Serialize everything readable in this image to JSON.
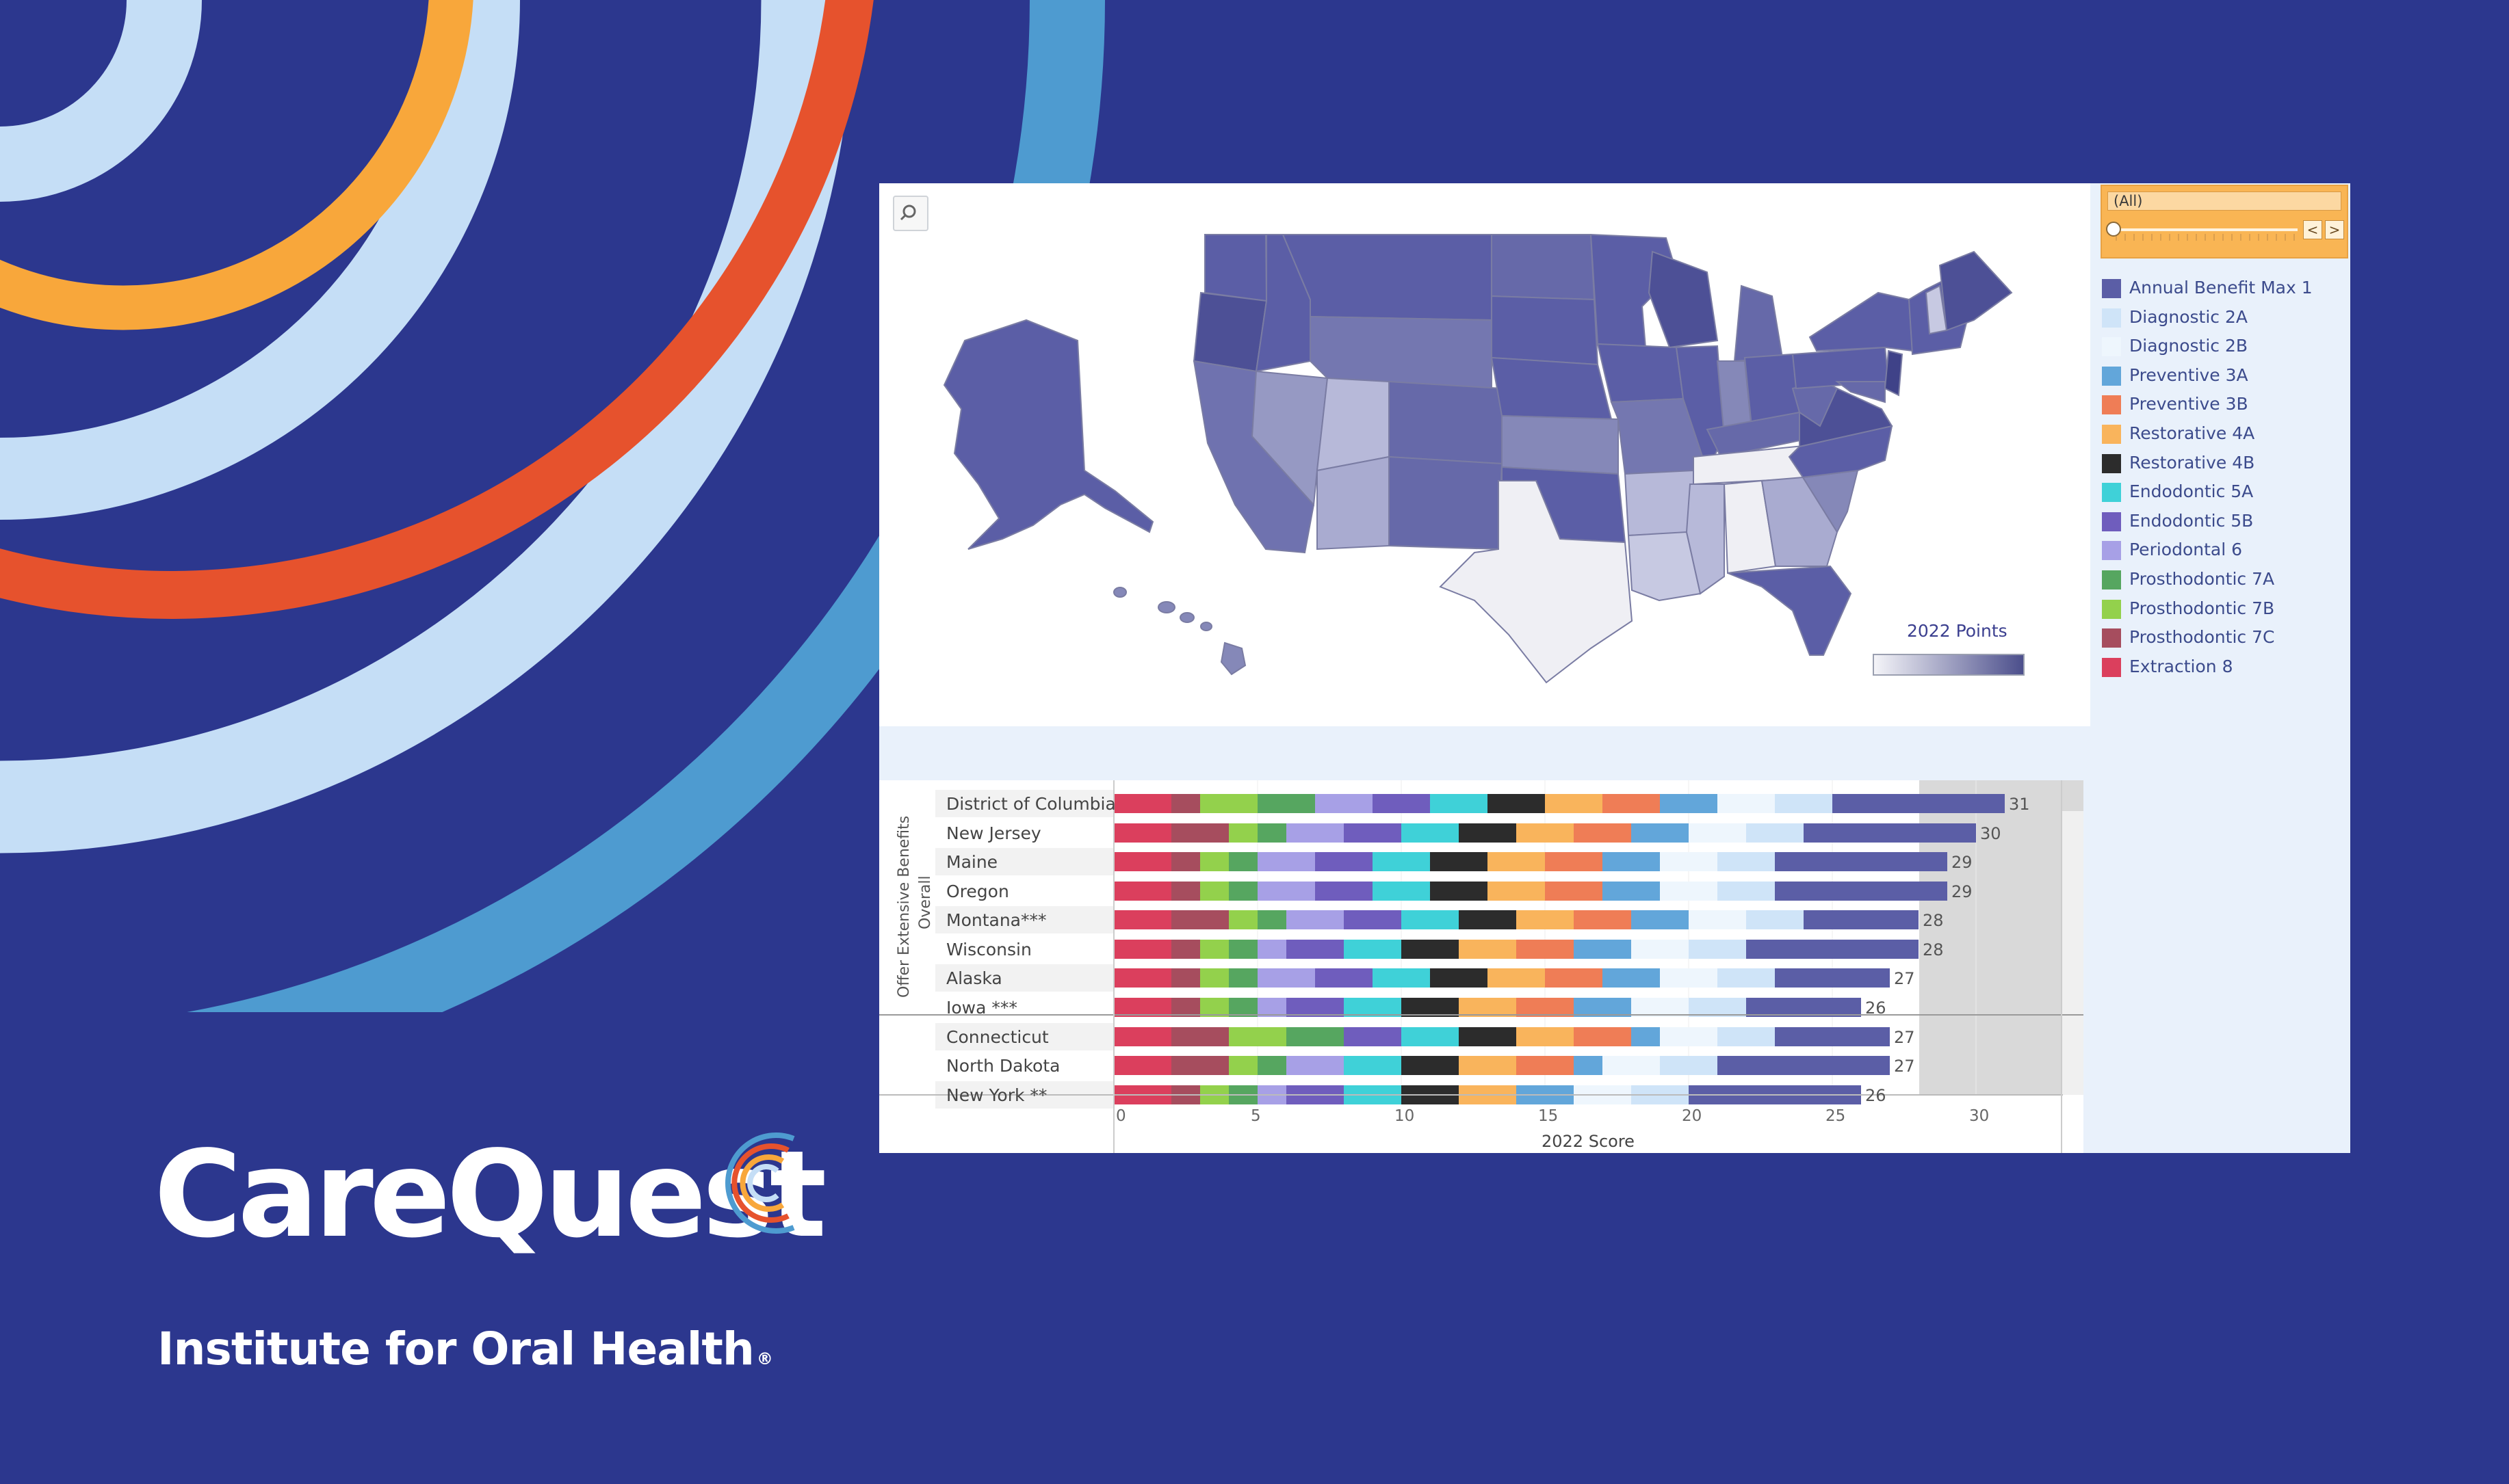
{
  "brand": {
    "name": "CareQuest",
    "subtitle": "Institute for Oral Health",
    "registered": "®"
  },
  "dashboard": {
    "map": {
      "legend_title": "2022 Points",
      "gradient_low": "#f4f4f8",
      "gradient_high": "#4c4f8c"
    },
    "filter": {
      "value": "(All)",
      "prev": "<",
      "next": ">"
    },
    "legend": [
      {
        "label": "Annual Benefit Max 1",
        "color": "#5b5ea6"
      },
      {
        "label": "Diagnostic 2A",
        "color": "#cfe4f8"
      },
      {
        "label": "Diagnostic 2B",
        "color": "#eef6fd"
      },
      {
        "label": "Preventive 3A",
        "color": "#62a6da"
      },
      {
        "label": "Preventive 3B",
        "color": "#ef7d56"
      },
      {
        "label": "Restorative 4A",
        "color": "#f9b45c"
      },
      {
        "label": "Restorative 4B",
        "color": "#2c2c2c"
      },
      {
        "label": "Endodontic 5A",
        "color": "#3fd1d8"
      },
      {
        "label": "Endodontic 5B",
        "color": "#6f5dbd"
      },
      {
        "label": "Periodontal 6",
        "color": "#a7a0e6"
      },
      {
        "label": "Prosthodontic 7A",
        "color": "#56a660"
      },
      {
        "label": "Prosthodontic 7B",
        "color": "#93d14c"
      },
      {
        "label": "Prosthodontic 7C",
        "color": "#a64d5e"
      },
      {
        "label": "Extraction 8",
        "color": "#db3f5d"
      }
    ],
    "bar_chart": {
      "row_header_1": "Offer Extensive Benefits",
      "row_header_2": "Overall",
      "x_title": "2022 Score",
      "x_ticks": [
        "0",
        "5",
        "10",
        "15",
        "20",
        "25",
        "30"
      ]
    }
  },
  "chart_data": {
    "type": "bar",
    "orientation": "horizontal",
    "stacked": true,
    "xlabel": "2022 Score",
    "xlim": [
      0,
      33
    ],
    "categories": [
      "District of Columbia",
      "New Jersey",
      "Maine",
      "Oregon",
      "Montana***",
      "Wisconsin",
      "Alaska",
      "Iowa ***",
      "Connecticut",
      "North Dakota",
      "New York **"
    ],
    "totals": [
      31,
      30,
      29,
      29,
      28,
      28,
      27,
      26,
      27,
      27,
      26
    ],
    "series": [
      {
        "name": "Extraction 8",
        "values": [
          2,
          2,
          2,
          2,
          2,
          2,
          2,
          2,
          2,
          2,
          2
        ]
      },
      {
        "name": "Prosthodontic 7C",
        "values": [
          1,
          2,
          1,
          1,
          2,
          1,
          1,
          1,
          2,
          2,
          1
        ]
      },
      {
        "name": "Prosthodontic 7B",
        "values": [
          2,
          1,
          1,
          1,
          1,
          1,
          1,
          1,
          2,
          1,
          1
        ]
      },
      {
        "name": "Prosthodontic 7A",
        "values": [
          2,
          1,
          1,
          1,
          1,
          1,
          1,
          1,
          2,
          1,
          1
        ]
      },
      {
        "name": "Periodontal 6",
        "values": [
          2,
          2,
          2,
          2,
          2,
          1,
          2,
          1,
          0,
          2,
          1
        ]
      },
      {
        "name": "Endodontic 5B",
        "values": [
          2,
          2,
          2,
          2,
          2,
          2,
          2,
          2,
          2,
          0,
          2
        ]
      },
      {
        "name": "Endodontic 5A",
        "values": [
          2,
          2,
          2,
          2,
          2,
          2,
          2,
          2,
          2,
          2,
          2
        ]
      },
      {
        "name": "Restorative 4B",
        "values": [
          2,
          2,
          2,
          2,
          2,
          2,
          2,
          2,
          2,
          2,
          2
        ]
      },
      {
        "name": "Restorative 4A",
        "values": [
          2,
          2,
          2,
          2,
          2,
          2,
          2,
          2,
          2,
          2,
          2
        ]
      },
      {
        "name": "Preventive 3B",
        "values": [
          2,
          2,
          2,
          2,
          2,
          2,
          2,
          2,
          2,
          2,
          0
        ]
      },
      {
        "name": "Preventive 3A",
        "values": [
          2,
          2,
          2,
          2,
          2,
          2,
          2,
          2,
          1,
          1,
          2
        ]
      },
      {
        "name": "Diagnostic 2B",
        "values": [
          2,
          2,
          2,
          2,
          2,
          2,
          2,
          2,
          2,
          2,
          2
        ]
      },
      {
        "name": "Diagnostic 2A",
        "values": [
          2,
          2,
          2,
          2,
          2,
          2,
          2,
          2,
          2,
          2,
          2
        ]
      },
      {
        "name": "Annual Benefit Max 1",
        "values": [
          6,
          6,
          6,
          6,
          4,
          6,
          4,
          4,
          4,
          6,
          6
        ]
      }
    ]
  }
}
